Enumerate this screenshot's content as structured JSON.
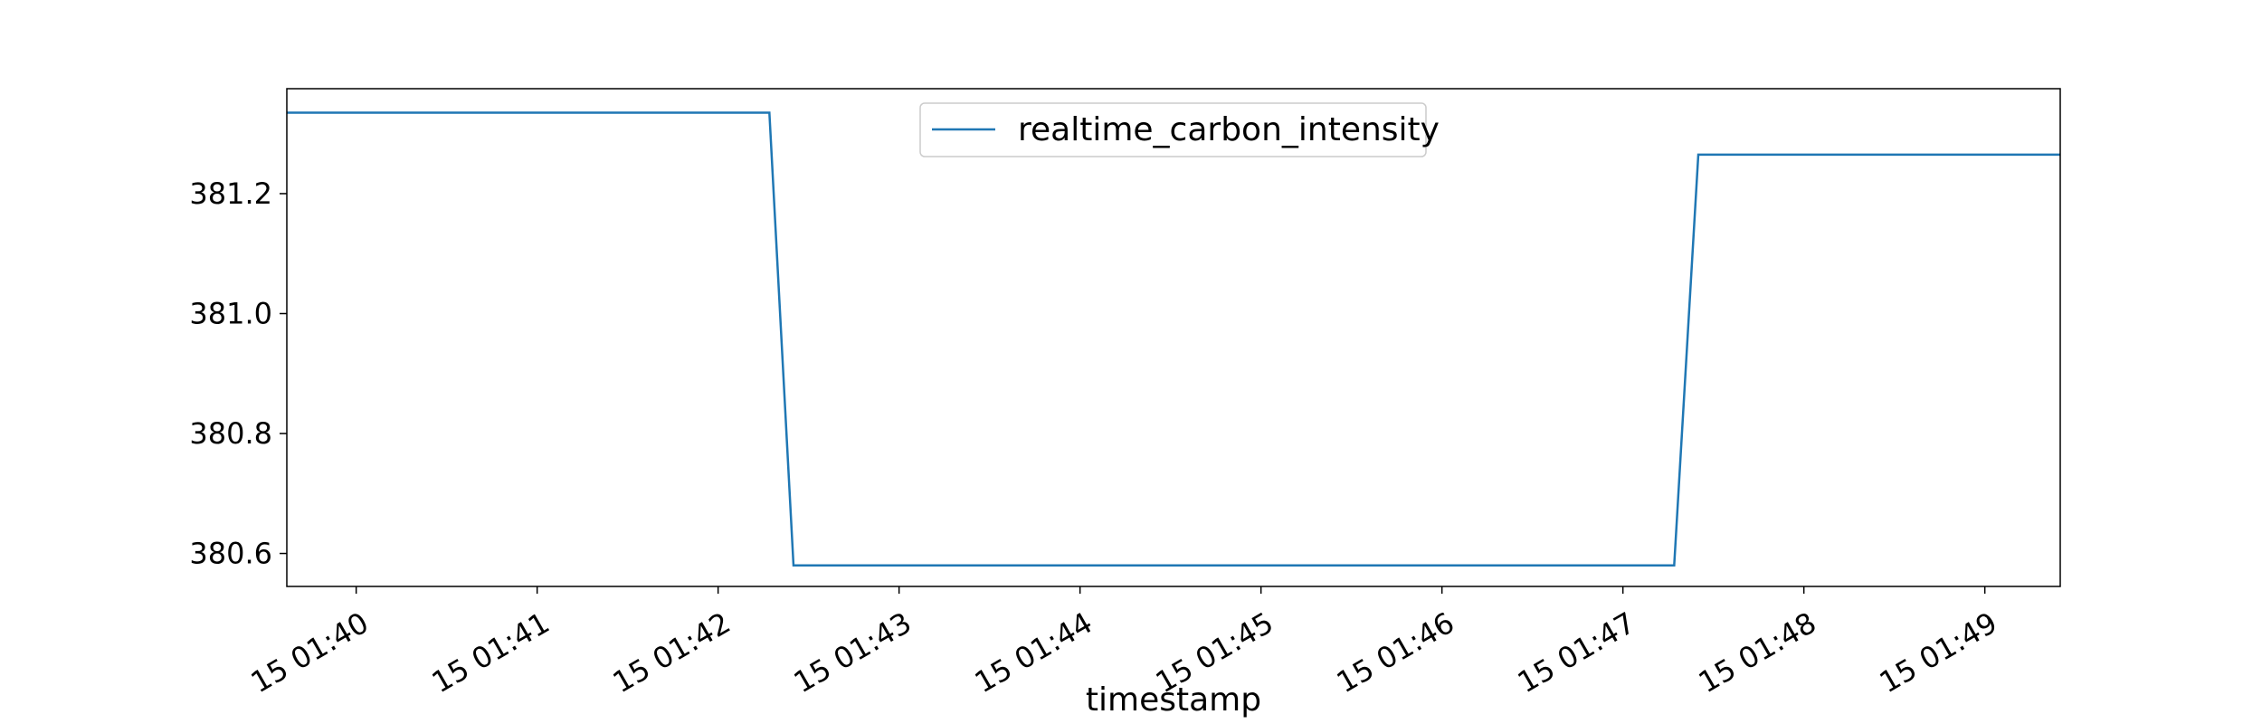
{
  "chart_data": {
    "type": "line",
    "title": "",
    "xlabel": "timestamp",
    "ylabel": "",
    "x_tick_labels": [
      "15 01:40",
      "15 01:41",
      "15 01:42",
      "15 01:43",
      "15 01:44",
      "15 01:45",
      "15 01:46",
      "15 01:47",
      "15 01:48",
      "15 01:49"
    ],
    "y_tick_labels": [
      "380.6",
      "380.8",
      "381.0",
      "381.2"
    ],
    "y_ticks": [
      380.6,
      380.8,
      381.0,
      381.2
    ],
    "xlim": [
      "01:39:37",
      "01:49:25"
    ],
    "ylim": [
      380.545,
      381.375
    ],
    "grid": false,
    "legend_position": "upper center",
    "series": [
      {
        "name": "realtime_carbon_intensity",
        "color": "#1f77b4",
        "x": [
          "01:39:37",
          "01:42:17",
          "01:42:25",
          "01:47:17",
          "01:47:25",
          "01:49:25"
        ],
        "y": [
          381.335,
          381.335,
          380.58,
          380.58,
          381.265,
          381.265
        ]
      }
    ]
  }
}
